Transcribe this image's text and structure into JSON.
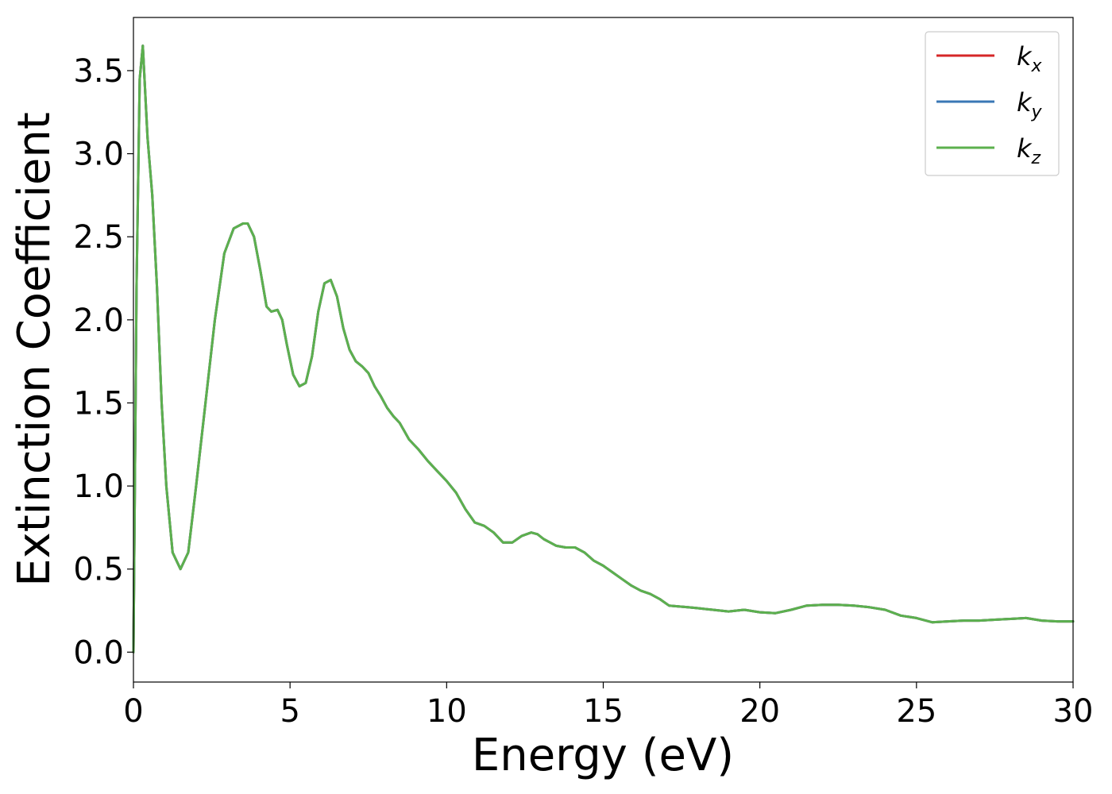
{
  "chart_data": {
    "type": "line",
    "xlabel": "Energy (eV)",
    "ylabel": "Extinction Coefficient",
    "xlim": [
      0,
      30
    ],
    "ylim": [
      -0.18,
      3.82
    ],
    "xticks": [
      0,
      5,
      10,
      15,
      20,
      25,
      30
    ],
    "xtick_labels": [
      "0",
      "5",
      "10",
      "15",
      "20",
      "25",
      "30"
    ],
    "yticks": [
      0.0,
      0.5,
      1.0,
      1.5,
      2.0,
      2.5,
      3.0,
      3.5
    ],
    "ytick_labels": [
      "0.0",
      "0.5",
      "1.0",
      "1.5",
      "2.0",
      "2.5",
      "3.0",
      "3.5"
    ],
    "grid": false,
    "legend_position": "top-right",
    "x": [
      0.0,
      0.1,
      0.2,
      0.3,
      0.45,
      0.6,
      0.75,
      0.9,
      1.05,
      1.25,
      1.5,
      1.75,
      2.0,
      2.3,
      2.6,
      2.9,
      3.2,
      3.5,
      3.65,
      3.85,
      4.05,
      4.25,
      4.4,
      4.6,
      4.75,
      4.9,
      5.1,
      5.3,
      5.5,
      5.7,
      5.9,
      6.1,
      6.3,
      6.5,
      6.7,
      6.9,
      7.1,
      7.3,
      7.5,
      7.7,
      7.9,
      8.1,
      8.3,
      8.5,
      8.8,
      9.1,
      9.4,
      9.7,
      10.0,
      10.3,
      10.6,
      10.9,
      11.2,
      11.5,
      11.8,
      12.1,
      12.4,
      12.7,
      12.9,
      13.1,
      13.3,
      13.5,
      13.8,
      14.1,
      14.4,
      14.7,
      15.0,
      15.3,
      15.6,
      15.9,
      16.2,
      16.5,
      16.8,
      17.1,
      17.4,
      17.7,
      18.0,
      18.5,
      19.0,
      19.5,
      20.0,
      20.5,
      21.0,
      21.5,
      22.0,
      22.5,
      23.0,
      23.5,
      24.0,
      24.5,
      25.0,
      25.5,
      26.0,
      26.5,
      27.0,
      27.5,
      28.0,
      28.5,
      29.0,
      29.5,
      30.0
    ],
    "series": [
      {
        "name": "k_x",
        "color": "#d62728",
        "values": [
          0.0,
          2.2,
          3.45,
          3.65,
          3.1,
          2.75,
          2.2,
          1.5,
          1.0,
          0.6,
          0.5,
          0.6,
          1.0,
          1.5,
          2.0,
          2.4,
          2.55,
          2.58,
          2.58,
          2.5,
          2.3,
          2.08,
          2.05,
          2.06,
          2.0,
          1.85,
          1.67,
          1.6,
          1.62,
          1.78,
          2.05,
          2.22,
          2.24,
          2.14,
          1.95,
          1.82,
          1.75,
          1.72,
          1.68,
          1.6,
          1.54,
          1.47,
          1.42,
          1.38,
          1.28,
          1.22,
          1.15,
          1.09,
          1.03,
          0.96,
          0.86,
          0.78,
          0.76,
          0.72,
          0.66,
          0.66,
          0.7,
          0.72,
          0.71,
          0.68,
          0.66,
          0.64,
          0.63,
          0.63,
          0.6,
          0.55,
          0.52,
          0.48,
          0.44,
          0.4,
          0.37,
          0.35,
          0.32,
          0.28,
          0.275,
          0.27,
          0.265,
          0.255,
          0.245,
          0.255,
          0.24,
          0.235,
          0.255,
          0.28,
          0.285,
          0.285,
          0.28,
          0.27,
          0.255,
          0.22,
          0.205,
          0.18,
          0.185,
          0.19,
          0.19,
          0.195,
          0.2,
          0.205,
          0.19,
          0.185,
          0.185
        ]
      },
      {
        "name": "k_y",
        "color": "#3a77b5",
        "values": [
          0.0,
          2.2,
          3.45,
          3.65,
          3.1,
          2.75,
          2.2,
          1.5,
          1.0,
          0.6,
          0.5,
          0.6,
          1.0,
          1.5,
          2.0,
          2.4,
          2.55,
          2.58,
          2.58,
          2.5,
          2.3,
          2.08,
          2.05,
          2.06,
          2.0,
          1.85,
          1.67,
          1.6,
          1.62,
          1.78,
          2.05,
          2.22,
          2.24,
          2.14,
          1.95,
          1.82,
          1.75,
          1.72,
          1.68,
          1.6,
          1.54,
          1.47,
          1.42,
          1.38,
          1.28,
          1.22,
          1.15,
          1.09,
          1.03,
          0.96,
          0.86,
          0.78,
          0.76,
          0.72,
          0.66,
          0.66,
          0.7,
          0.72,
          0.71,
          0.68,
          0.66,
          0.64,
          0.63,
          0.63,
          0.6,
          0.55,
          0.52,
          0.48,
          0.44,
          0.4,
          0.37,
          0.35,
          0.32,
          0.28,
          0.275,
          0.27,
          0.265,
          0.255,
          0.245,
          0.255,
          0.24,
          0.235,
          0.255,
          0.28,
          0.285,
          0.285,
          0.28,
          0.27,
          0.255,
          0.22,
          0.205,
          0.18,
          0.185,
          0.19,
          0.19,
          0.195,
          0.2,
          0.205,
          0.19,
          0.185,
          0.185
        ]
      },
      {
        "name": "k_z",
        "color": "#5cb04e",
        "values": [
          0.0,
          2.2,
          3.45,
          3.65,
          3.1,
          2.75,
          2.2,
          1.5,
          1.0,
          0.6,
          0.5,
          0.6,
          1.0,
          1.5,
          2.0,
          2.4,
          2.55,
          2.58,
          2.58,
          2.5,
          2.3,
          2.08,
          2.05,
          2.06,
          2.0,
          1.85,
          1.67,
          1.6,
          1.62,
          1.78,
          2.05,
          2.22,
          2.24,
          2.14,
          1.95,
          1.82,
          1.75,
          1.72,
          1.68,
          1.6,
          1.54,
          1.47,
          1.42,
          1.38,
          1.28,
          1.22,
          1.15,
          1.09,
          1.03,
          0.96,
          0.86,
          0.78,
          0.76,
          0.72,
          0.66,
          0.66,
          0.7,
          0.72,
          0.71,
          0.68,
          0.66,
          0.64,
          0.63,
          0.63,
          0.6,
          0.55,
          0.52,
          0.48,
          0.44,
          0.4,
          0.37,
          0.35,
          0.32,
          0.28,
          0.275,
          0.27,
          0.265,
          0.255,
          0.245,
          0.255,
          0.24,
          0.235,
          0.255,
          0.28,
          0.285,
          0.285,
          0.28,
          0.27,
          0.255,
          0.22,
          0.205,
          0.18,
          0.185,
          0.19,
          0.19,
          0.195,
          0.2,
          0.205,
          0.19,
          0.185,
          0.185
        ]
      }
    ],
    "legend": [
      {
        "main": "k",
        "sub": "x",
        "color": "#d62728"
      },
      {
        "main": "k",
        "sub": "y",
        "color": "#3a77b5"
      },
      {
        "main": "k",
        "sub": "z",
        "color": "#5cb04e"
      }
    ]
  }
}
